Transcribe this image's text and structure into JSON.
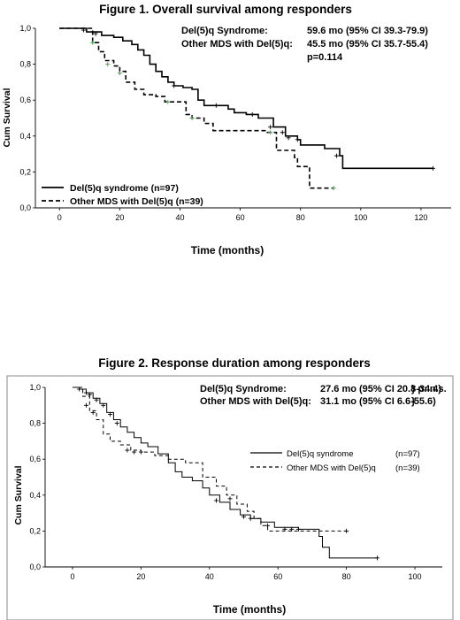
{
  "chart_data": [
    {
      "type": "line",
      "subtype": "kaplan-meier",
      "title": "Figure 1. Overall survival among responders",
      "xlabel": "Time  (months)",
      "ylabel": "Cum Survival",
      "xlim": [
        -8,
        130
      ],
      "ylim": [
        0,
        1.0
      ],
      "xticks": [
        0,
        20,
        40,
        60,
        80,
        100,
        120
      ],
      "yticks": [
        0.0,
        0.2,
        0.4,
        0.6,
        0.8,
        1.0
      ],
      "ytick_labels": [
        "0,0",
        "0,2",
        "0,4",
        "0,6",
        "0,8",
        "1,0"
      ],
      "annotations": [
        {
          "label": "Del(5)q Syndrome:",
          "value": "59.6 mo (95% CI 39.3-79.9)"
        },
        {
          "label": "Other MDS with Del(5)q:",
          "value": "45.5 mo (95% CI 35.7-55.4)"
        },
        {
          "label": "",
          "value": "p=0.114"
        }
      ],
      "legend_position": "bottom-left",
      "series": [
        {
          "name": "Del(5)q syndrome  (n=97)",
          "style": "solid",
          "points": [
            [
              0,
              1.0
            ],
            [
              5,
              1.0
            ],
            [
              9,
              0.98
            ],
            [
              14,
              0.96
            ],
            [
              18,
              0.95
            ],
            [
              21,
              0.93
            ],
            [
              24,
              0.91
            ],
            [
              26,
              0.88
            ],
            [
              28,
              0.85
            ],
            [
              30,
              0.8
            ],
            [
              32,
              0.76
            ],
            [
              34,
              0.73
            ],
            [
              36,
              0.7
            ],
            [
              38,
              0.68
            ],
            [
              41,
              0.67
            ],
            [
              44,
              0.66
            ],
            [
              46,
              0.6
            ],
            [
              48,
              0.57
            ],
            [
              52,
              0.57
            ],
            [
              56,
              0.55
            ],
            [
              58,
              0.53
            ],
            [
              62,
              0.52
            ],
            [
              66,
              0.5
            ],
            [
              71,
              0.45
            ],
            [
              75,
              0.4
            ],
            [
              79,
              0.38
            ],
            [
              80,
              0.35
            ],
            [
              88,
              0.33
            ],
            [
              93,
              0.29
            ],
            [
              94,
              0.22
            ],
            [
              124,
              0.22
            ]
          ],
          "censors": [
            [
              8,
              0.99
            ],
            [
              12,
              0.97
            ],
            [
              38,
              0.68
            ],
            [
              52,
              0.57
            ],
            [
              64,
              0.52
            ],
            [
              70,
              0.45
            ],
            [
              74,
              0.42
            ],
            [
              76,
              0.39
            ],
            [
              79,
              0.38
            ],
            [
              92,
              0.29
            ],
            [
              124,
              0.22
            ]
          ]
        },
        {
          "name": "Other MDS with Del(5)q  (n=39)",
          "style": "dashed",
          "points": [
            [
              0,
              1.0
            ],
            [
              9,
              1.0
            ],
            [
              11,
              0.92
            ],
            [
              13,
              0.87
            ],
            [
              15,
              0.82
            ],
            [
              18,
              0.79
            ],
            [
              20,
              0.76
            ],
            [
              22,
              0.7
            ],
            [
              25,
              0.66
            ],
            [
              28,
              0.63
            ],
            [
              32,
              0.62
            ],
            [
              35,
              0.59
            ],
            [
              41,
              0.59
            ],
            [
              42,
              0.52
            ],
            [
              44,
              0.5
            ],
            [
              48,
              0.47
            ],
            [
              51,
              0.43
            ],
            [
              69,
              0.42
            ],
            [
              72,
              0.32
            ],
            [
              78,
              0.28
            ],
            [
              79,
              0.23
            ],
            [
              83,
              0.11
            ],
            [
              91,
              0.11
            ]
          ],
          "censors": [
            [
              11,
              0.92
            ],
            [
              16,
              0.8
            ],
            [
              20,
              0.75
            ],
            [
              36,
              0.59
            ],
            [
              44,
              0.5
            ],
            [
              70,
              0.42
            ],
            [
              91,
              0.11
            ]
          ]
        }
      ]
    },
    {
      "type": "line",
      "subtype": "kaplan-meier",
      "title": "Figure 2. Response duration among responders",
      "xlabel": "Time  (months)",
      "ylabel": "Cum Survival",
      "xlim": [
        -8,
        108
      ],
      "ylim": [
        0,
        1.0
      ],
      "xticks": [
        0,
        20,
        40,
        60,
        80,
        100
      ],
      "yticks": [
        0.0,
        0.2,
        0.4,
        0.6,
        0.8,
        1.0
      ],
      "ytick_labels": [
        "0,0",
        "0,2",
        "0,4",
        "0,6",
        "0,8",
        "1,0"
      ],
      "annotations": [
        {
          "label": "Del(5)q Syndrome:",
          "value": "27.6 mo (95% CI 20.8-34.4)",
          "extra": "} p: n.s."
        },
        {
          "label": "Other MDS with Del(5)q:",
          "value": "31.1 mo (95% CI 6.6-55.6)",
          "extra": "}"
        }
      ],
      "legend_position": "right",
      "series": [
        {
          "name": "Del(5)q syndrome",
          "n_label": "(n=97)",
          "style": "solid",
          "points": [
            [
              0,
              1.0
            ],
            [
              2,
              0.99
            ],
            [
              4,
              0.97
            ],
            [
              6,
              0.94
            ],
            [
              8,
              0.91
            ],
            [
              10,
              0.86
            ],
            [
              12,
              0.82
            ],
            [
              14,
              0.78
            ],
            [
              16,
              0.75
            ],
            [
              18,
              0.72
            ],
            [
              20,
              0.69
            ],
            [
              22,
              0.67
            ],
            [
              25,
              0.63
            ],
            [
              28,
              0.58
            ],
            [
              30,
              0.53
            ],
            [
              32,
              0.5
            ],
            [
              35,
              0.48
            ],
            [
              38,
              0.44
            ],
            [
              40,
              0.4
            ],
            [
              43,
              0.36
            ],
            [
              46,
              0.32
            ],
            [
              49,
              0.29
            ],
            [
              52,
              0.27
            ],
            [
              55,
              0.25
            ],
            [
              59,
              0.22
            ],
            [
              66,
              0.21
            ],
            [
              70,
              0.21
            ],
            [
              72,
              0.17
            ],
            [
              73,
              0.11
            ],
            [
              75,
              0.05
            ],
            [
              89,
              0.05
            ]
          ],
          "censors": [
            [
              2,
              0.99
            ],
            [
              4,
              0.97
            ],
            [
              5,
              0.96
            ],
            [
              7,
              0.93
            ],
            [
              9,
              0.9
            ],
            [
              11,
              0.85
            ],
            [
              13,
              0.8
            ],
            [
              42,
              0.37
            ],
            [
              50,
              0.28
            ],
            [
              52,
              0.27
            ],
            [
              57,
              0.23
            ],
            [
              62,
              0.21
            ],
            [
              64,
              0.21
            ],
            [
              66,
              0.21
            ],
            [
              89,
              0.05
            ]
          ]
        },
        {
          "name": "Other MDS with Del(5)q",
          "n_label": "(n=39)",
          "style": "dashed",
          "points": [
            [
              0,
              1.0
            ],
            [
              3,
              0.95
            ],
            [
              5,
              0.87
            ],
            [
              7,
              0.82
            ],
            [
              9,
              0.74
            ],
            [
              11,
              0.7
            ],
            [
              14,
              0.68
            ],
            [
              17,
              0.65
            ],
            [
              20,
              0.64
            ],
            [
              24,
              0.62
            ],
            [
              28,
              0.6
            ],
            [
              33,
              0.58
            ],
            [
              38,
              0.5
            ],
            [
              42,
              0.45
            ],
            [
              45,
              0.4
            ],
            [
              48,
              0.35
            ],
            [
              51,
              0.31
            ],
            [
              53,
              0.27
            ],
            [
              55,
              0.23
            ],
            [
              57,
              0.2
            ],
            [
              80,
              0.2
            ]
          ],
          "censors": [
            [
              4,
              0.9
            ],
            [
              6,
              0.86
            ],
            [
              16,
              0.65
            ],
            [
              18,
              0.64
            ],
            [
              20,
              0.64
            ],
            [
              46,
              0.38
            ],
            [
              80,
              0.2
            ]
          ]
        }
      ]
    }
  ]
}
